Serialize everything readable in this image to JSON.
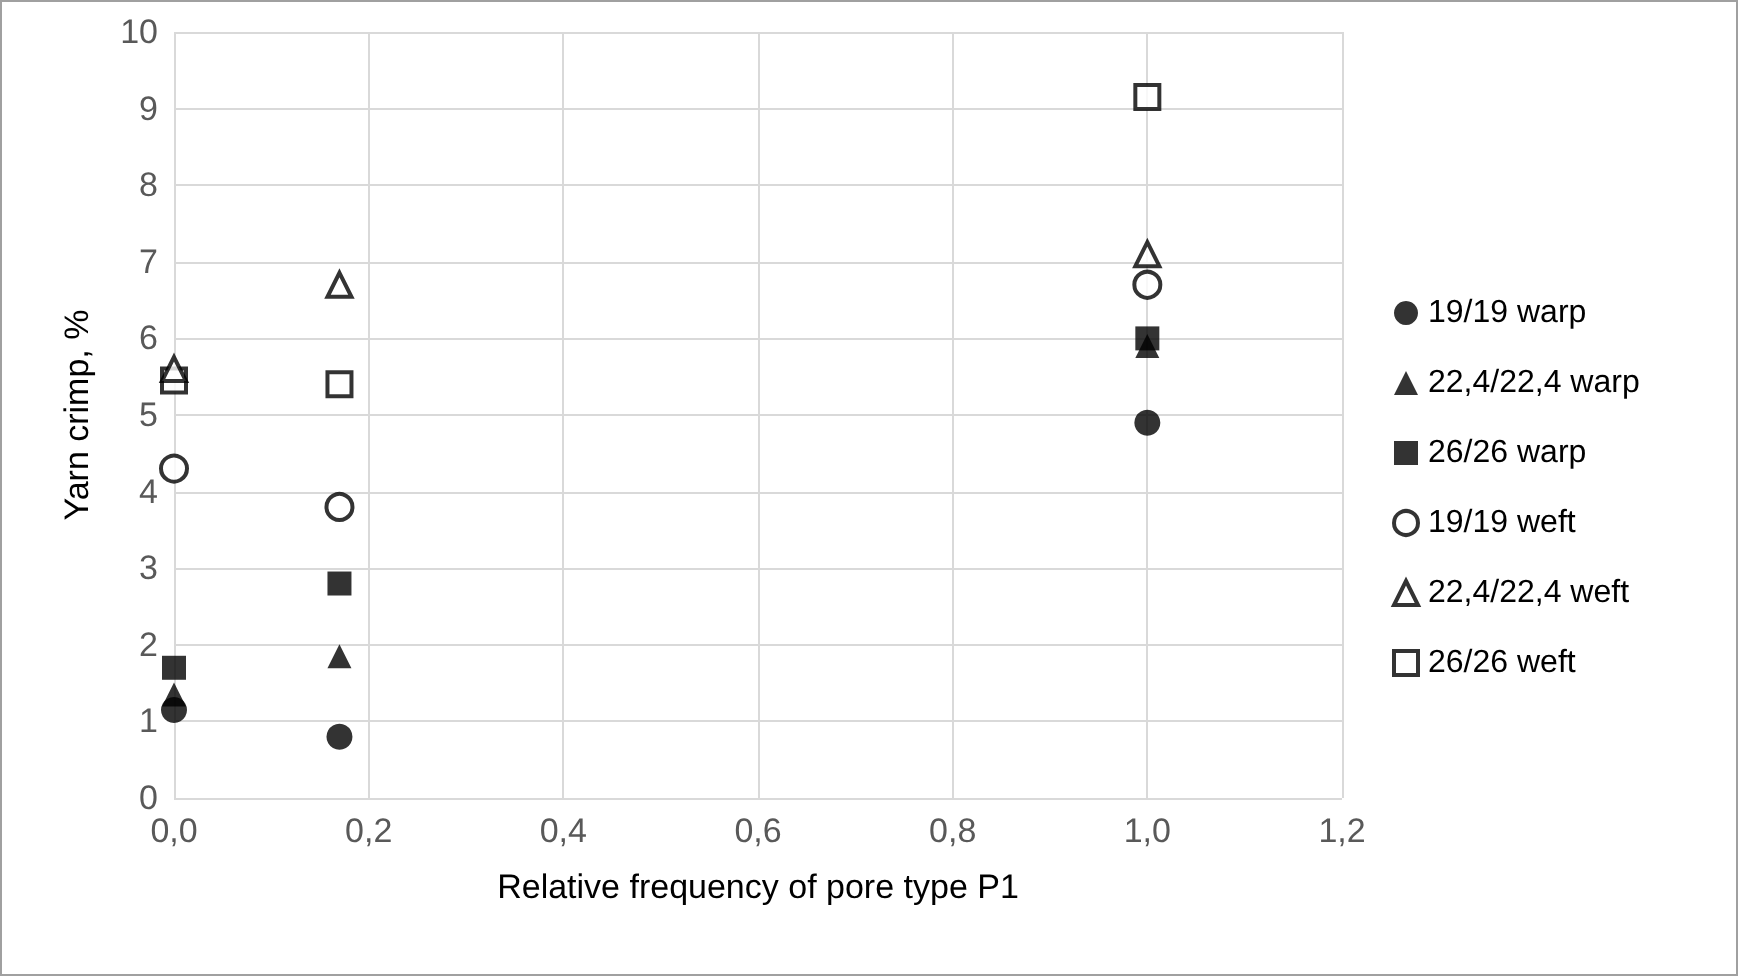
{
  "chart_data": {
    "type": "scatter",
    "xlabel": "Relative frequency of pore type P1",
    "ylabel": "Yarn crimp, %",
    "xlim": [
      0,
      1.2
    ],
    "xticks": [
      {
        "value": 0,
        "label": "0,0"
      },
      {
        "value": 0.2,
        "label": "0,2"
      },
      {
        "value": 0.4,
        "label": "0,4"
      },
      {
        "value": 0.6,
        "label": "0,6"
      },
      {
        "value": 0.8,
        "label": "0,8"
      },
      {
        "value": 1,
        "label": "1,0"
      },
      {
        "value": 1.2,
        "label": "1,2"
      }
    ],
    "ylim": [
      0,
      10
    ],
    "yticks": [
      0,
      1,
      2,
      3,
      4,
      5,
      6,
      7,
      8,
      9,
      10
    ],
    "grid": true,
    "legend": "right",
    "x": [
      0,
      0.17,
      1
    ],
    "series": [
      {
        "name": "19/19 warp",
        "color": "#000000",
        "marker": "circle",
        "values": [
          1.15,
          0.8,
          4.9
        ]
      },
      {
        "name": "22,4/22,4 warp",
        "color": "#000000",
        "marker": "triangle",
        "values": [
          1.35,
          1.85,
          5.9
        ]
      },
      {
        "name": "26/26 warp",
        "color": "#000000",
        "marker": "square",
        "values": [
          1.7,
          2.8,
          6.0
        ]
      },
      {
        "name": "19/19 weft",
        "color": "#ffffff",
        "marker": "circle",
        "values": [
          4.3,
          3.8,
          6.7
        ]
      },
      {
        "name": "22,4/22,4 weft",
        "color": "#ffffff",
        "marker": "triangle",
        "values": [
          5.6,
          6.7,
          7.1
        ]
      },
      {
        "name": "26/26 weft",
        "color": "#ffffff",
        "marker": "square",
        "values": [
          5.45,
          5.4,
          9.15
        ]
      }
    ]
  }
}
